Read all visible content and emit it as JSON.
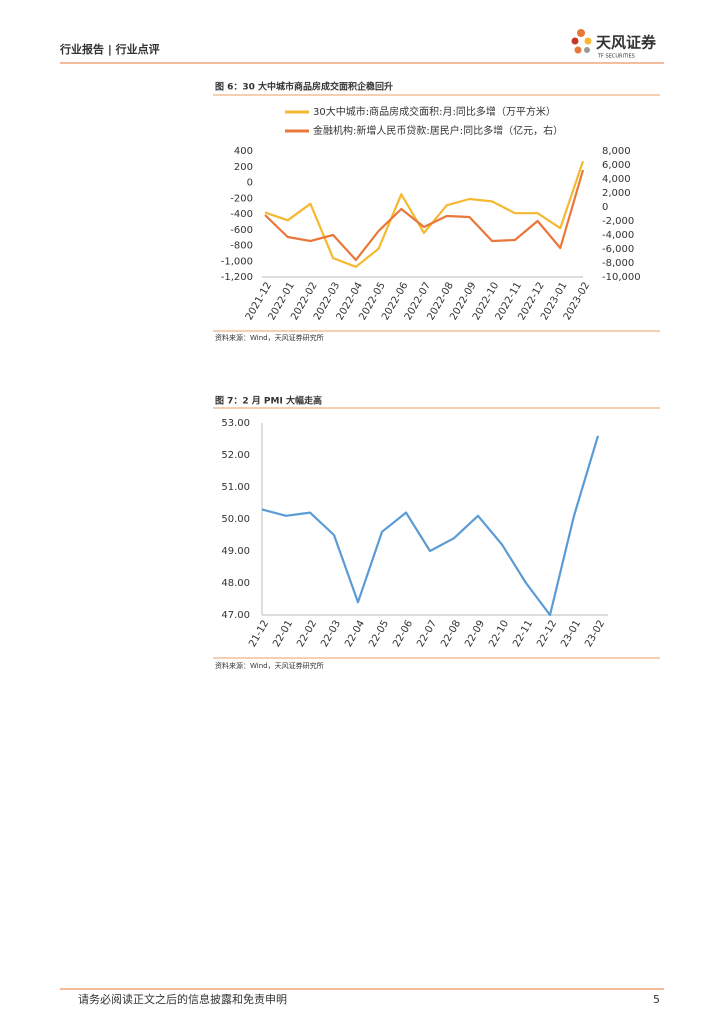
{
  "header": {
    "left": "行业报告 | 行业点评",
    "logo": "天风证券",
    "logo_sub": "TF SECURITIES"
  },
  "chart_data": [
    {
      "type": "line",
      "title": "图 6：30 大中城市商品房成交面积企稳回升",
      "categories": [
        "2021-12",
        "2022-01",
        "2022-02",
        "2022-03",
        "2022-04",
        "2022-05",
        "2022-06",
        "2022-07",
        "2022-08",
        "2022-09",
        "2022-10",
        "2022-11",
        "2022-12",
        "2023-01",
        "2023-02"
      ],
      "series": [
        {
          "name": "30大中城市:商品房成交面积:月:同比多增（万平方米）",
          "color": "#f5b830",
          "values": [
            -380,
            -480,
            -270,
            -960,
            -1070,
            -840,
            -150,
            -640,
            -290,
            -210,
            -240,
            -390,
            -390,
            -580,
            270
          ]
        },
        {
          "name": "金融机构:新增人民币贷款:居民户:同比多增（亿元，右）",
          "color": "#e8773a",
          "axis": "y2",
          "values": [
            -1140,
            -4290,
            -4860,
            -4000,
            -7570,
            -3430,
            -290,
            -2860,
            -1290,
            -1430,
            -4860,
            -4710,
            -2000,
            -5860,
            5290
          ]
        }
      ],
      "ylim": [
        -1200,
        400
      ],
      "yticks": [
        {
          "value": -1200,
          "label": "-1,200"
        },
        {
          "value": -1000,
          "label": "-1,000"
        },
        -800,
        -600,
        -400,
        -200,
        0,
        200,
        400
      ],
      "y2lim": [
        -10000,
        8000
      ],
      "y2ticks": [
        {
          "value": -10000,
          "label": "-10,000"
        },
        {
          "value": -8000,
          "label": "-8,000"
        },
        {
          "value": -6000,
          "label": "-6,000"
        },
        {
          "value": -4000,
          "label": "-4,000"
        },
        {
          "value": -2000,
          "label": "-2,000"
        },
        0,
        {
          "value": 2000,
          "label": "2,000"
        },
        {
          "value": 4000,
          "label": "4,000"
        },
        {
          "value": 6000,
          "label": "6,000"
        },
        {
          "value": 8000,
          "label": "8,000"
        }
      ],
      "grid": false,
      "source": "资料来源：Wind，天风证券研究所"
    },
    {
      "type": "line",
      "title": "图 7：2 月 PMI 大幅走高",
      "categories": [
        "21-12",
        "22-01",
        "22-02",
        "22-03",
        "22-04",
        "22-05",
        "22-06",
        "22-07",
        "22-08",
        "22-09",
        "22-10",
        "22-11",
        "22-12",
        "23-01",
        "23-02"
      ],
      "values": [
        50.3,
        50.1,
        50.2,
        49.5,
        47.4,
        49.6,
        50.2,
        49.0,
        49.4,
        50.1,
        49.2,
        48.0,
        47.0,
        50.1,
        52.6
      ],
      "color": "#5b9bd5",
      "ylim": [
        47,
        53
      ],
      "yticks": [
        {
          "value": 47,
          "label": "47.00"
        },
        {
          "value": 48,
          "label": "48.00"
        },
        {
          "value": 49,
          "label": "49.00"
        },
        {
          "value": 50,
          "label": "50.00"
        },
        {
          "value": 51,
          "label": "51.00"
        },
        {
          "value": 52,
          "label": "52.00"
        },
        {
          "value": 53,
          "label": "53.00"
        }
      ],
      "grid": false,
      "source": "资料来源：Wind，天风证券研究所"
    }
  ],
  "footer": {
    "disclaimer": "请务必阅读正文之后的信息披露和免责申明",
    "page": 5
  }
}
